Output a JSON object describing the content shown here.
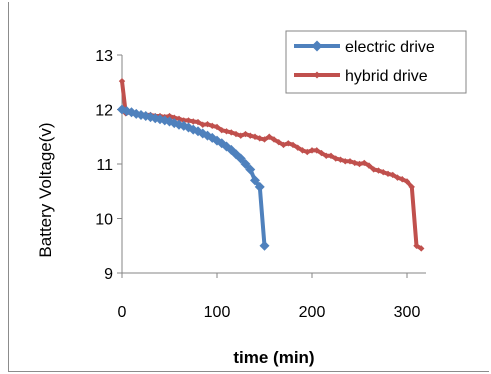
{
  "chart_data": {
    "type": "line",
    "title": "",
    "xlabel": "time (min)",
    "ylabel": "Battery Voltage(v)",
    "xlim": [
      0,
      320
    ],
    "ylim": [
      9,
      13
    ],
    "xticks": [
      0,
      100,
      200,
      300
    ],
    "yticks": [
      9,
      10,
      11,
      12,
      13
    ],
    "grid": false,
    "legend": "top-right",
    "series": [
      {
        "name": "electric drive",
        "color": "#4f81bd",
        "marker": "diamond",
        "points": [
          [
            0,
            12.0
          ],
          [
            5,
            11.97
          ],
          [
            10,
            11.95
          ],
          [
            15,
            11.92
          ],
          [
            20,
            11.9
          ],
          [
            25,
            11.88
          ],
          [
            30,
            11.86
          ],
          [
            35,
            11.84
          ],
          [
            40,
            11.82
          ],
          [
            45,
            11.8
          ],
          [
            50,
            11.78
          ],
          [
            55,
            11.75
          ],
          [
            60,
            11.72
          ],
          [
            65,
            11.7
          ],
          [
            70,
            11.67
          ],
          [
            75,
            11.63
          ],
          [
            80,
            11.6
          ],
          [
            85,
            11.56
          ],
          [
            90,
            11.52
          ],
          [
            95,
            11.48
          ],
          [
            100,
            11.43
          ],
          [
            105,
            11.38
          ],
          [
            110,
            11.32
          ],
          [
            115,
            11.26
          ],
          [
            120,
            11.18
          ],
          [
            125,
            11.1
          ],
          [
            130,
            11.0
          ],
          [
            135,
            10.9
          ],
          [
            140,
            10.7
          ],
          [
            145,
            10.58
          ],
          [
            150,
            9.5
          ]
        ]
      },
      {
        "name": "hybrid drive",
        "color": "#c0504d",
        "marker": "diamond",
        "points": [
          [
            0,
            12.52
          ],
          [
            4,
            11.93
          ],
          [
            10,
            11.95
          ],
          [
            15,
            11.92
          ],
          [
            20,
            11.92
          ],
          [
            25,
            11.9
          ],
          [
            30,
            11.9
          ],
          [
            35,
            11.88
          ],
          [
            40,
            11.88
          ],
          [
            45,
            11.86
          ],
          [
            50,
            11.88
          ],
          [
            55,
            11.85
          ],
          [
            60,
            11.83
          ],
          [
            65,
            11.8
          ],
          [
            70,
            11.8
          ],
          [
            75,
            11.78
          ],
          [
            80,
            11.77
          ],
          [
            85,
            11.72
          ],
          [
            90,
            11.73
          ],
          [
            95,
            11.7
          ],
          [
            100,
            11.68
          ],
          [
            105,
            11.62
          ],
          [
            110,
            11.6
          ],
          [
            115,
            11.58
          ],
          [
            120,
            11.55
          ],
          [
            125,
            11.52
          ],
          [
            130,
            11.55
          ],
          [
            135,
            11.52
          ],
          [
            140,
            11.5
          ],
          [
            145,
            11.47
          ],
          [
            150,
            11.45
          ],
          [
            155,
            11.5
          ],
          [
            160,
            11.45
          ],
          [
            165,
            11.4
          ],
          [
            170,
            11.35
          ],
          [
            175,
            11.38
          ],
          [
            180,
            11.35
          ],
          [
            185,
            11.3
          ],
          [
            190,
            11.25
          ],
          [
            195,
            11.22
          ],
          [
            200,
            11.25
          ],
          [
            205,
            11.25
          ],
          [
            210,
            11.2
          ],
          [
            215,
            11.15
          ],
          [
            220,
            11.15
          ],
          [
            225,
            11.1
          ],
          [
            230,
            11.08
          ],
          [
            235,
            11.05
          ],
          [
            240,
            11.05
          ],
          [
            245,
            11.02
          ],
          [
            250,
            11.0
          ],
          [
            255,
            11.02
          ],
          [
            260,
            10.97
          ],
          [
            265,
            10.9
          ],
          [
            270,
            10.88
          ],
          [
            275,
            10.85
          ],
          [
            280,
            10.82
          ],
          [
            285,
            10.8
          ],
          [
            290,
            10.75
          ],
          [
            295,
            10.72
          ],
          [
            300,
            10.68
          ],
          [
            305,
            10.58
          ],
          [
            310,
            9.5
          ],
          [
            315,
            9.45
          ]
        ]
      }
    ]
  }
}
